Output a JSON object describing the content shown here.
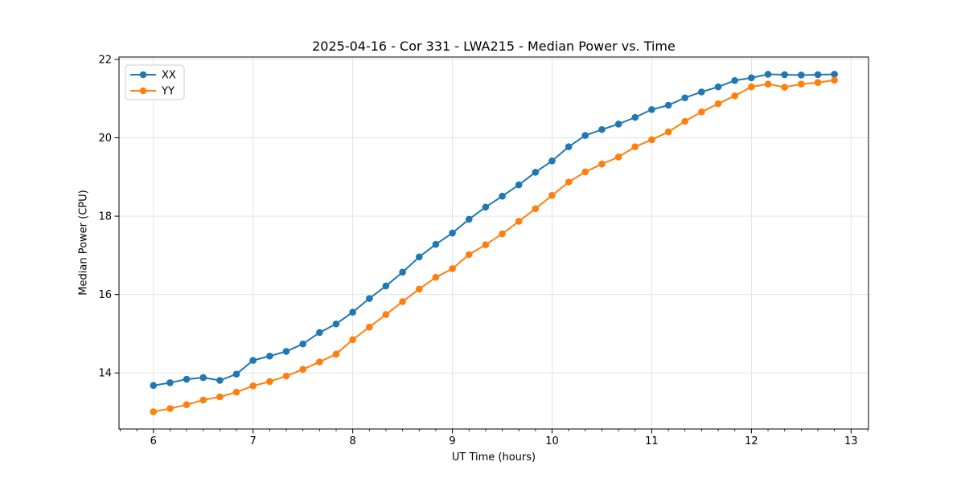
{
  "chart_data": {
    "type": "line",
    "title": "2025-04-16 - Cor 331 - LWA215 - Median Power vs. Time",
    "xlabel": "UT Time (hours)",
    "ylabel": "Median Power (CPU)",
    "xlim": [
      5.655,
      13.175
    ],
    "ylim": [
      12.57,
      22.06
    ],
    "xticks": [
      6,
      7,
      8,
      9,
      10,
      11,
      12,
      13
    ],
    "yticks": [
      14,
      16,
      18,
      20,
      22
    ],
    "x_minor_divisions": 6,
    "grid": true,
    "grid_color": "#e0e0e0",
    "spine_color": "#000000",
    "legend_position": "upper-left",
    "marker": "circle",
    "x": [
      6.0,
      6.167,
      6.333,
      6.5,
      6.667,
      6.833,
      7.0,
      7.167,
      7.333,
      7.5,
      7.667,
      7.833,
      8.0,
      8.167,
      8.333,
      8.5,
      8.667,
      8.833,
      9.0,
      9.167,
      9.333,
      9.5,
      9.667,
      9.833,
      10.0,
      10.167,
      10.333,
      10.5,
      10.667,
      10.833,
      11.0,
      11.167,
      11.333,
      11.5,
      11.667,
      11.833,
      12.0,
      12.167,
      12.333,
      12.5,
      12.667,
      12.833
    ],
    "series": [
      {
        "name": "XX",
        "color": "#1f77b4",
        "values": [
          13.68,
          13.75,
          13.84,
          13.88,
          13.81,
          13.97,
          14.32,
          14.43,
          14.55,
          14.74,
          15.03,
          15.25,
          15.55,
          15.9,
          16.22,
          16.57,
          16.96,
          17.28,
          17.57,
          17.92,
          18.23,
          18.51,
          18.8,
          19.12,
          19.41,
          19.77,
          20.06,
          20.21,
          20.35,
          20.52,
          20.72,
          20.83,
          21.02,
          21.17,
          21.3,
          21.46,
          21.53,
          21.62,
          21.61,
          21.6,
          21.61,
          21.62
        ]
      },
      {
        "name": "YY",
        "color": "#ff7f0e",
        "values": [
          13.01,
          13.09,
          13.19,
          13.31,
          13.39,
          13.51,
          13.67,
          13.78,
          13.92,
          14.09,
          14.28,
          14.48,
          14.85,
          15.17,
          15.49,
          15.82,
          16.14,
          16.44,
          16.66,
          17.02,
          17.27,
          17.55,
          17.87,
          18.19,
          18.53,
          18.87,
          19.13,
          19.33,
          19.51,
          19.77,
          19.95,
          20.15,
          20.42,
          20.66,
          20.87,
          21.07,
          21.3,
          21.37,
          21.29,
          21.37,
          21.41,
          21.47
        ]
      }
    ]
  }
}
